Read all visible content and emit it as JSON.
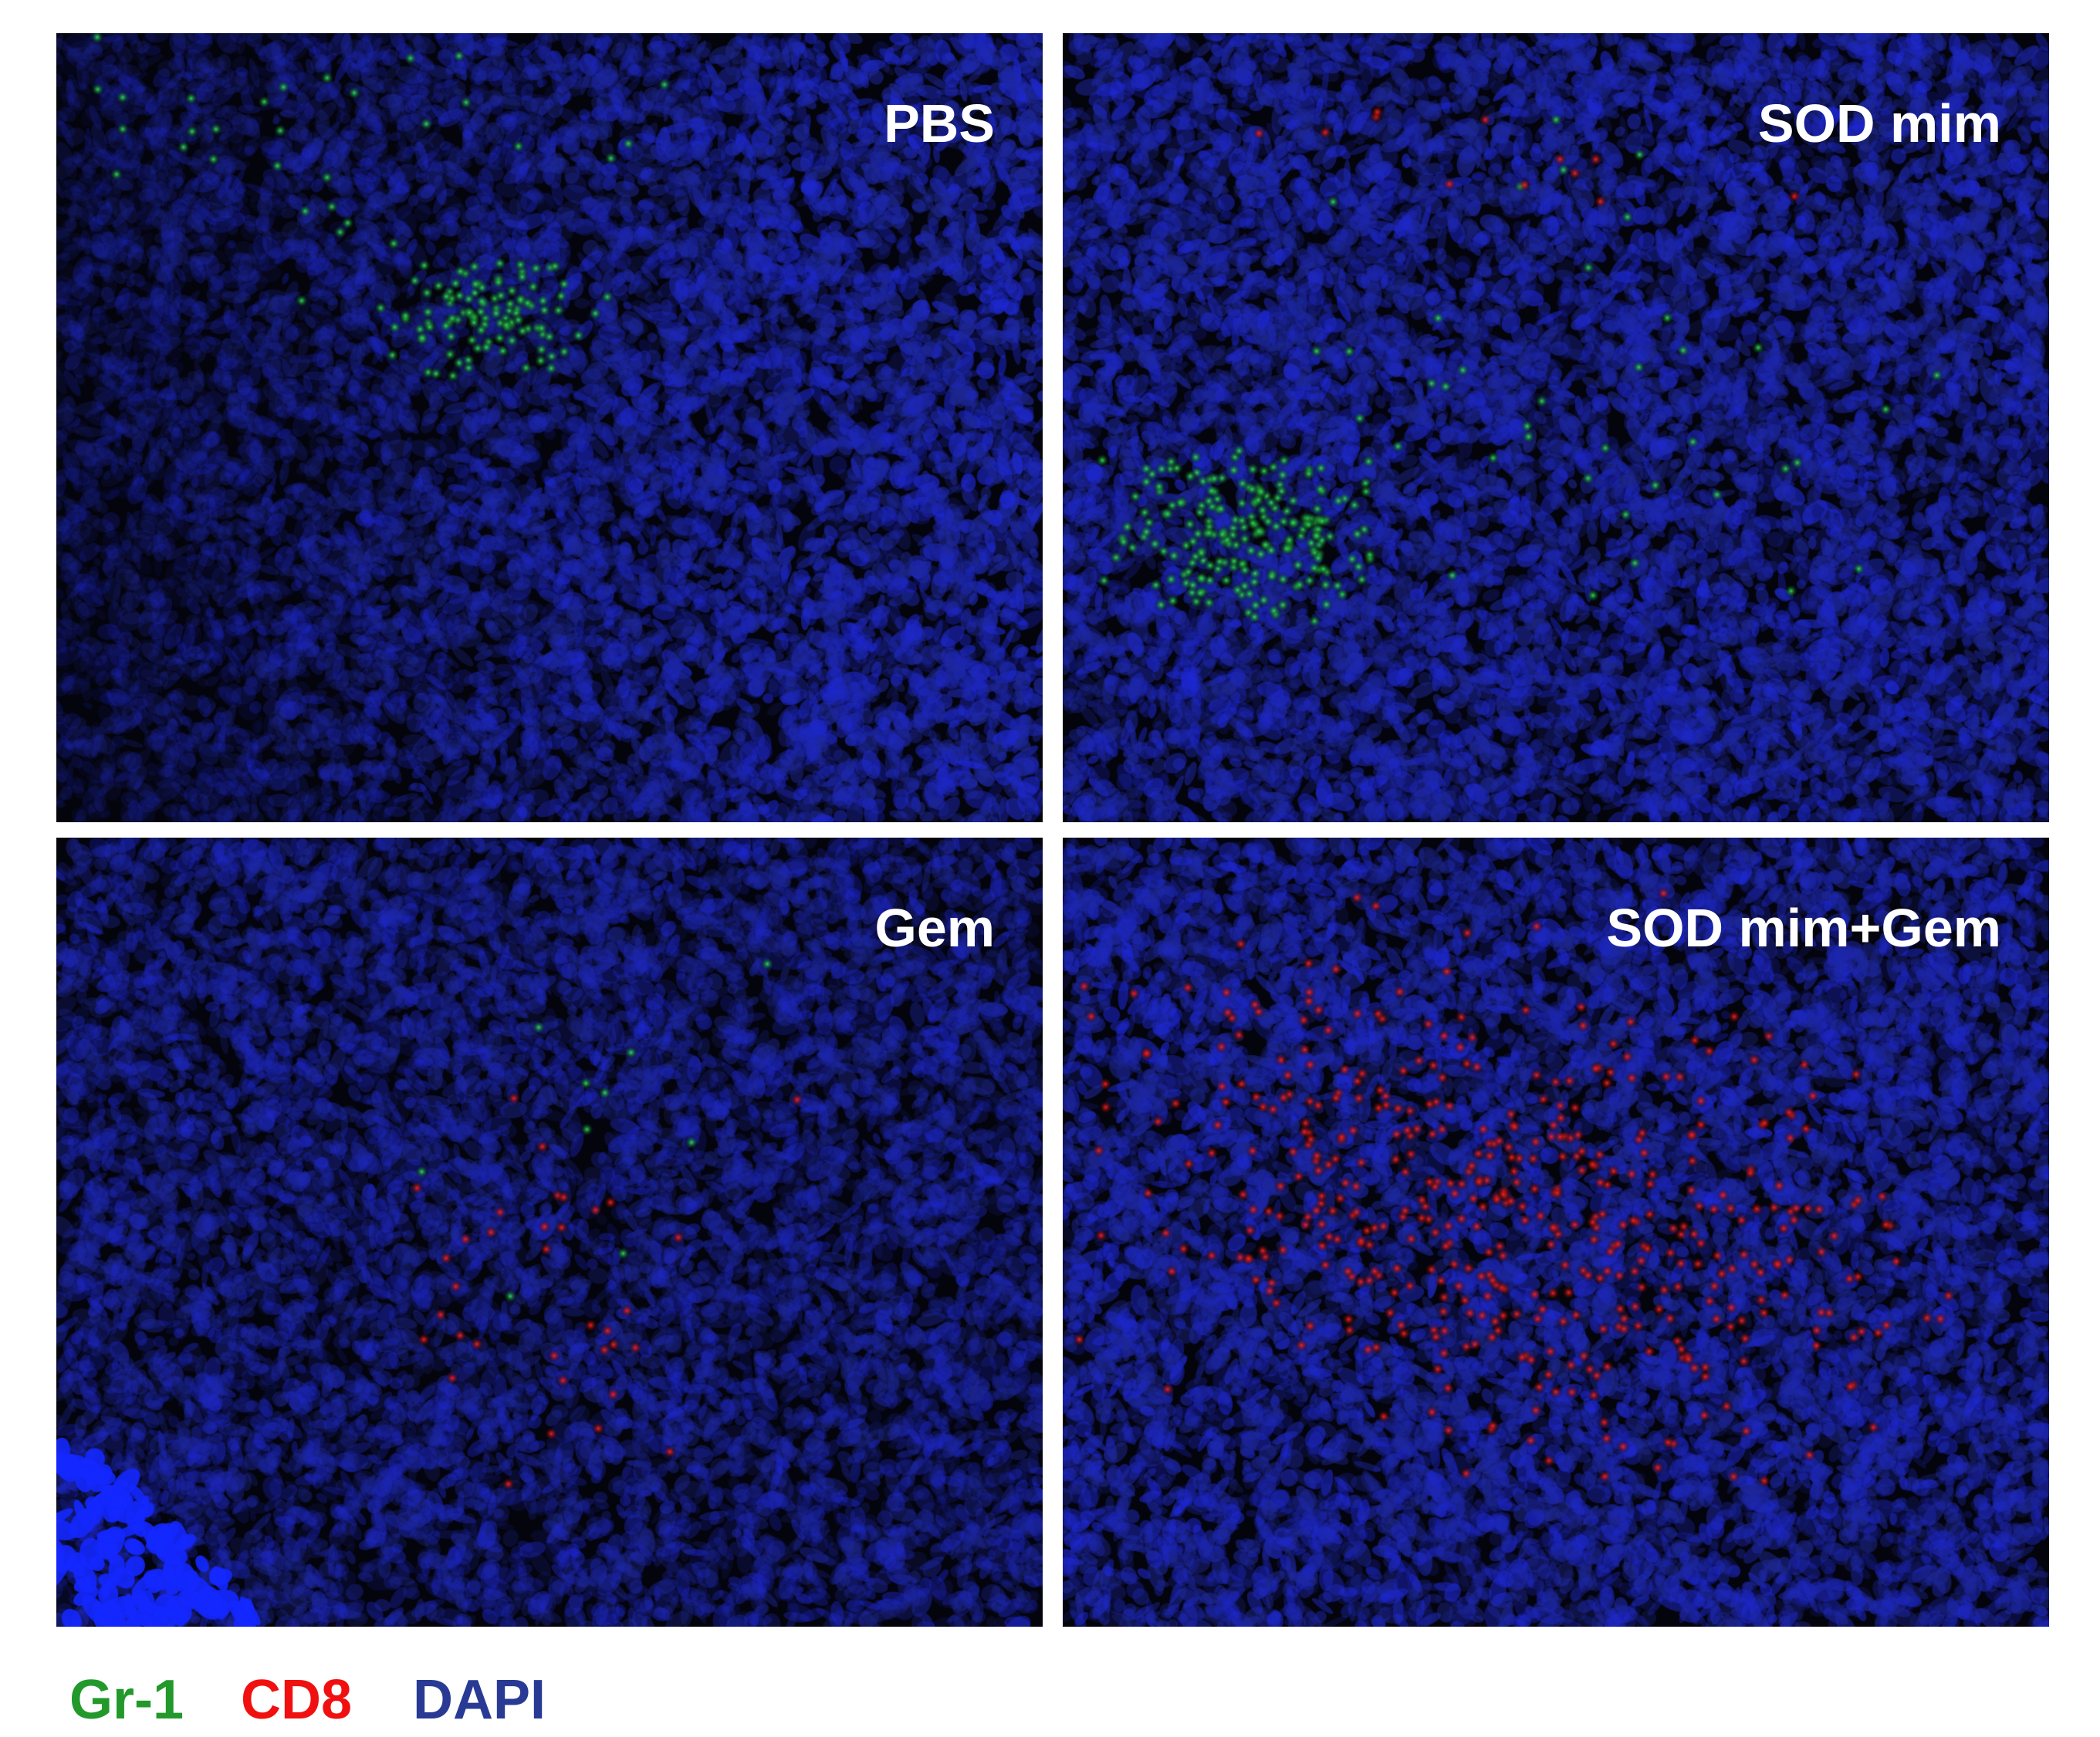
{
  "panels": [
    {
      "label": "PBS",
      "dominant_marker": "Gr-1"
    },
    {
      "label": "SOD mim",
      "dominant_marker": "Gr-1"
    },
    {
      "label": "Gem",
      "dominant_marker": "sparse"
    },
    {
      "label": "SOD mim+Gem",
      "dominant_marker": "CD8"
    }
  ],
  "legend": [
    {
      "label": "Gr-1",
      "color": "#22992a"
    },
    {
      "label": "CD8",
      "color": "#f01010"
    },
    {
      "label": "DAPI",
      "color": "#283a94"
    }
  ],
  "channel_colors": {
    "gr1": "#2de05a",
    "cd8": "#ff2020",
    "dapi": "#1a22c8"
  }
}
